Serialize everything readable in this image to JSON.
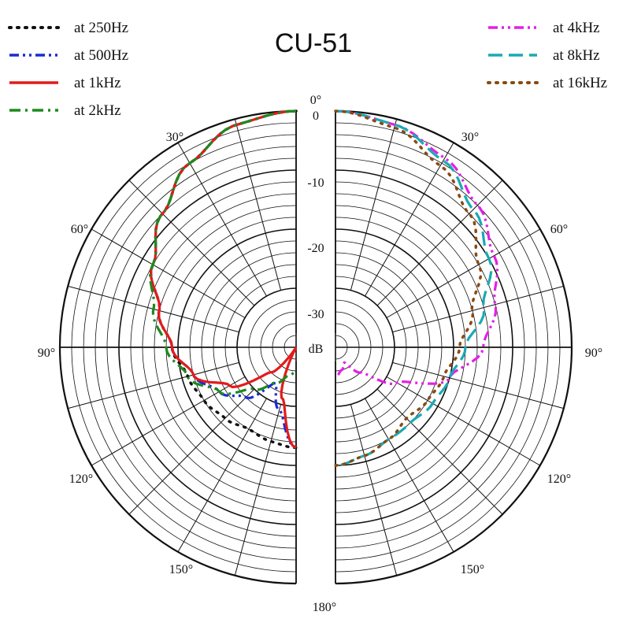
{
  "chart_data": {
    "type": "polar",
    "title": "CU-51",
    "radial_label": "dB",
    "radial_range": [
      -40,
      0
    ],
    "radial_ticks": [
      "0",
      "-10",
      "-20",
      "-30"
    ],
    "angle_labels": [
      "0°",
      "30°",
      "60°",
      "90°",
      "120°",
      "150°",
      "180°"
    ],
    "angles_deg": [
      0,
      15,
      30,
      45,
      60,
      75,
      90,
      105,
      120,
      135,
      150,
      165,
      180
    ],
    "series": [
      {
        "name": "at 250Hz",
        "side": "left",
        "color": "#111111",
        "style": "dot",
        "values": [
          0,
          -1,
          -4,
          -8,
          -12,
          -16,
          -19,
          -21,
          -22,
          -23,
          -24,
          -23.5,
          -23
        ]
      },
      {
        "name": "at 500Hz",
        "side": "left",
        "color": "#1a2bd6",
        "style": "dashdotdot",
        "values": [
          0,
          -1,
          -4,
          -8,
          -12,
          -16,
          -19,
          -22,
          -25,
          -28,
          -33,
          -29,
          -23
        ]
      },
      {
        "name": "at 1kHz",
        "side": "left",
        "color": "#e31b1b",
        "style": "solid",
        "values": [
          0,
          -1,
          -4,
          -8,
          -12,
          -16,
          -19,
          -22,
          -27,
          -34,
          -40,
          -31,
          -23
        ]
      },
      {
        "name": "at 2kHz",
        "side": "left",
        "color": "#1d8a1d",
        "style": "dashdot",
        "values": [
          0,
          -1,
          -4,
          -8,
          -12,
          -15,
          -18,
          -21,
          -25,
          -30,
          -33,
          -35,
          -36
        ]
      },
      {
        "name": "at 4kHz",
        "side": "right",
        "color": "#e41fe6",
        "style": "dashdotdot",
        "values": [
          0,
          -1,
          -3,
          -6,
          -9,
          -12,
          -15,
          -20,
          -28,
          -34,
          -37,
          -36,
          -35
        ]
      },
      {
        "name": "at 8kHz",
        "side": "right",
        "color": "#1aa9b4",
        "style": "dash",
        "values": [
          0,
          -1,
          -3.5,
          -7,
          -10,
          -14,
          -18,
          -20,
          -21,
          -22,
          -22,
          -21,
          -20
        ]
      },
      {
        "name": "at 16kHz",
        "side": "right",
        "color": "#8a4a12",
        "style": "dot",
        "values": [
          0,
          -1.5,
          -4.5,
          -8,
          -12,
          -16,
          -19,
          -21,
          -22,
          -23,
          -22,
          -21,
          -20
        ]
      }
    ]
  }
}
